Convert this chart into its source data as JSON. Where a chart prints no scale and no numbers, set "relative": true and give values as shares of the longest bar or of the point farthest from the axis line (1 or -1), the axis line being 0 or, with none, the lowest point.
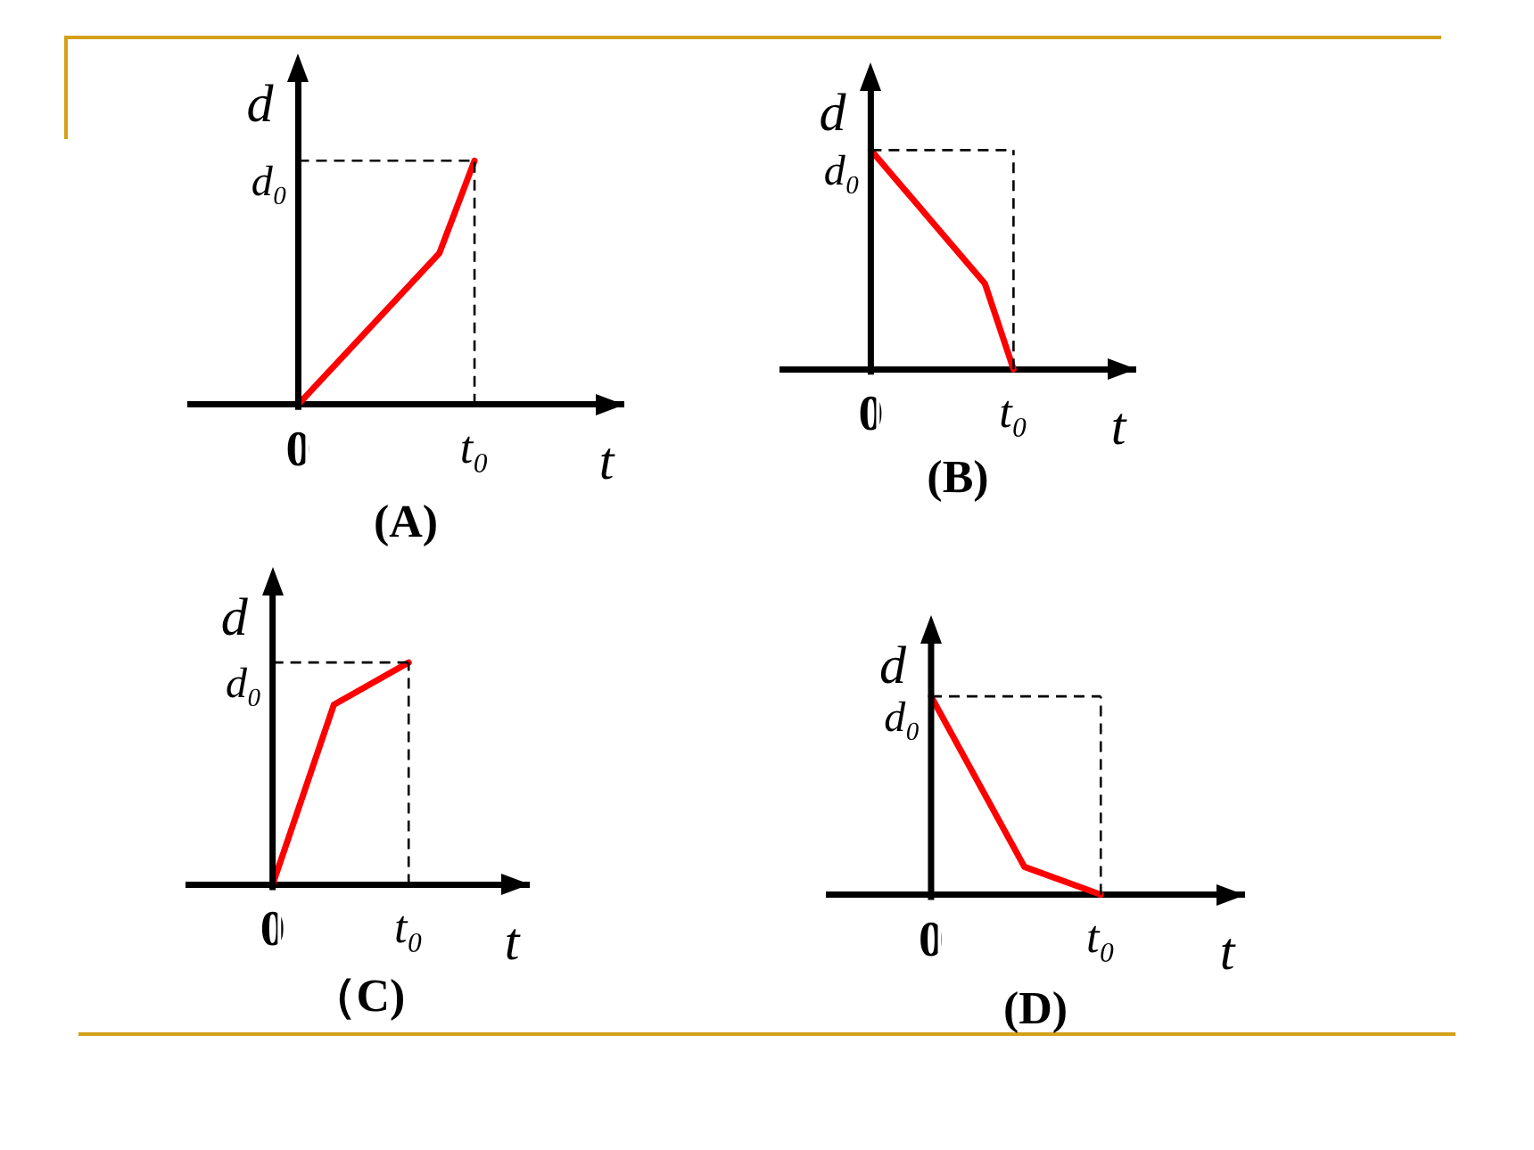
{
  "chart_data": [
    {
      "type": "line",
      "title": "(A)",
      "xlabel": "t",
      "ylabel": "d",
      "relative": true,
      "categories": [
        "0",
        null,
        null,
        null,
        null,
        null,
        null,
        null,
        null,
        null,
        null,
        null,
        null,
        null,
        null,
        null,
        null,
        null,
        null,
        null,
        "t₀"
      ],
      "series": [
        {
          "color": "#ff0000",
          "values": [
            0,
            null,
            null,
            null,
            null,
            null,
            null,
            null,
            null,
            null,
            null,
            null,
            null,
            null,
            null,
            null,
            0.62,
            null,
            null,
            null,
            1
          ]
        }
      ],
      "annotations": [
        "d₀"
      ],
      "ref_lines": [
        {
          "axis": "x",
          "value": "t₀",
          "color": "#000000",
          "line_style": "dashed"
        },
        {
          "axis": "y",
          "value": 1,
          "color": "#000000",
          "line_style": "dashed"
        }
      ],
      "marker": "none",
      "line_style": "solid",
      "grid": false,
      "legend": false
    },
    {
      "type": "line",
      "title": "(B)",
      "xlabel": "t",
      "ylabel": "d",
      "relative": true,
      "categories": [
        "0",
        null,
        null,
        null,
        null,
        null,
        null,
        null,
        null,
        null,
        null,
        null,
        null,
        null,
        null,
        null,
        null,
        null,
        null,
        null,
        "t₀"
      ],
      "series": [
        {
          "color": "#ff0000",
          "values": [
            1,
            null,
            null,
            null,
            null,
            null,
            null,
            null,
            null,
            null,
            null,
            null,
            null,
            null,
            null,
            null,
            0.39,
            null,
            null,
            null,
            0
          ]
        }
      ],
      "annotations": [
        "d₀"
      ],
      "ref_lines": [
        {
          "axis": "x",
          "value": "t₀",
          "color": "#000000",
          "line_style": "dashed"
        },
        {
          "axis": "y",
          "value": 1,
          "color": "#000000",
          "line_style": "dashed"
        }
      ],
      "marker": "none",
      "line_style": "solid",
      "grid": false,
      "legend": false
    },
    {
      "type": "line",
      "title": "（C)",
      "xlabel": "t",
      "ylabel": "d",
      "relative": true,
      "categories": [
        "0",
        null,
        null,
        null,
        null,
        null,
        null,
        null,
        null,
        null,
        null,
        null,
        null,
        null,
        null,
        null,
        null,
        null,
        null,
        null,
        "t₀"
      ],
      "series": [
        {
          "color": "#ff0000",
          "values": [
            0,
            null,
            null,
            null,
            null,
            null,
            null,
            null,
            null,
            0.81,
            null,
            null,
            null,
            null,
            null,
            null,
            null,
            null,
            null,
            null,
            1
          ]
        }
      ],
      "annotations": [
        "d₀"
      ],
      "ref_lines": [
        {
          "axis": "x",
          "value": "t₀",
          "color": "#000000",
          "line_style": "dashed"
        },
        {
          "axis": "y",
          "value": 1,
          "color": "#000000",
          "line_style": "dashed"
        }
      ],
      "marker": "none",
      "line_style": "solid",
      "grid": false,
      "legend": false
    },
    {
      "type": "line",
      "title": "(D)",
      "xlabel": "t",
      "ylabel": "d",
      "relative": true,
      "categories": [
        "0",
        null,
        null,
        null,
        null,
        null,
        null,
        null,
        null,
        null,
        null,
        null,
        null,
        null,
        null,
        null,
        null,
        null,
        null,
        null,
        "t₀"
      ],
      "series": [
        {
          "color": "#ff0000",
          "values": [
            1,
            null,
            null,
            null,
            null,
            null,
            null,
            null,
            null,
            null,
            null,
            0.14,
            null,
            null,
            null,
            null,
            null,
            null,
            null,
            null,
            0
          ]
        }
      ],
      "annotations": [
        "d₀"
      ],
      "ref_lines": [
        {
          "axis": "x",
          "value": "t₀",
          "color": "#000000",
          "line_style": "dashed"
        },
        {
          "axis": "y",
          "value": 1,
          "color": "#000000",
          "line_style": "dashed"
        }
      ],
      "marker": "none",
      "line_style": "solid",
      "grid": false,
      "legend": false
    }
  ]
}
